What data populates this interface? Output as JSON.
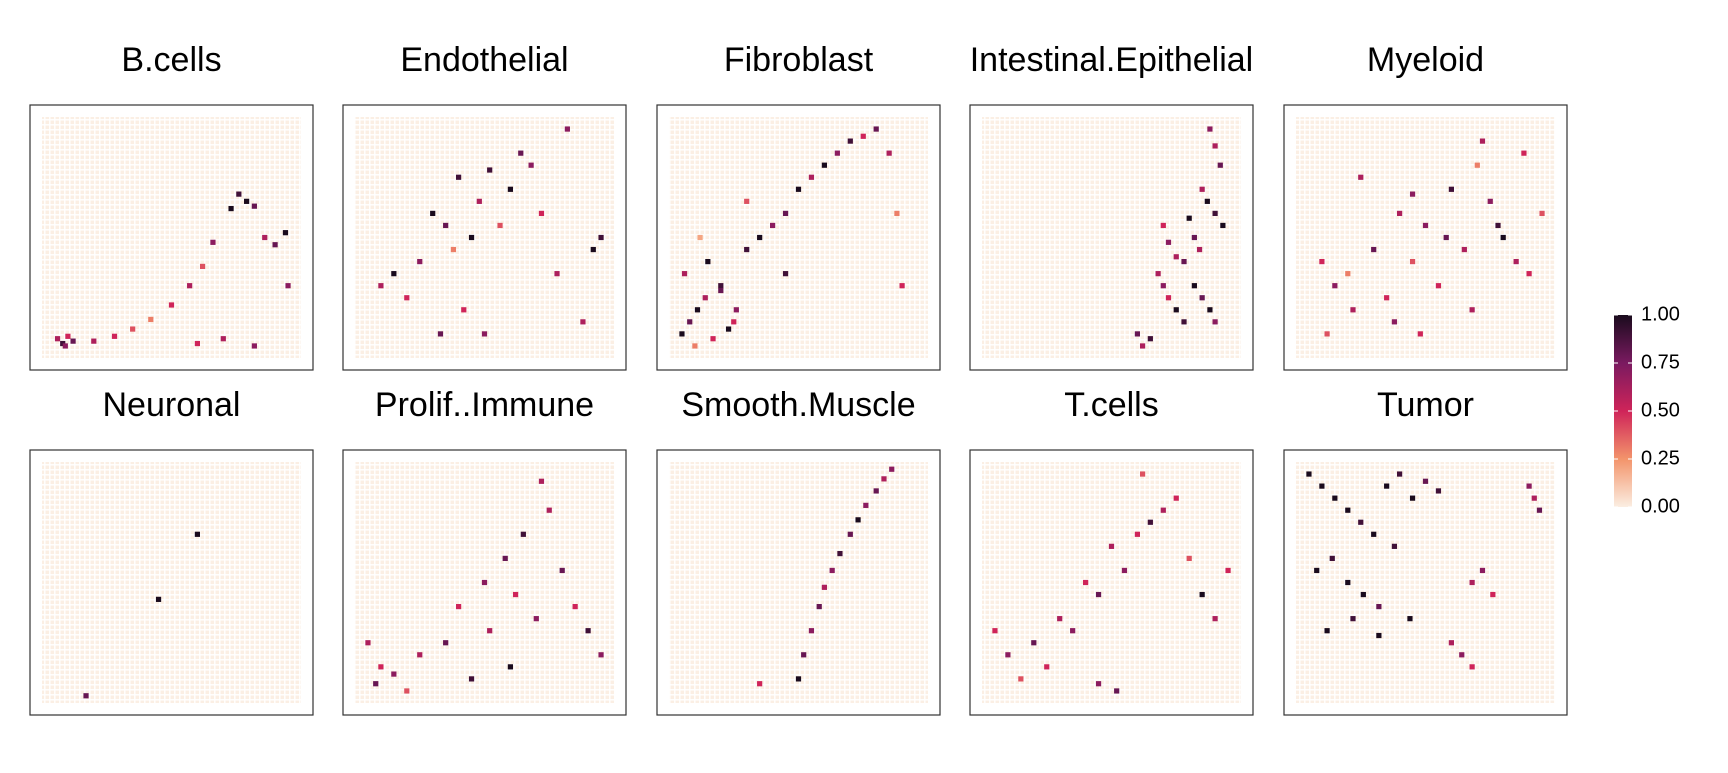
{
  "chart_data": [
    {
      "type": "scatter",
      "title": "B.cells",
      "xlim": [
        0,
        100
      ],
      "ylim": [
        0,
        100
      ],
      "x": [
        6,
        8,
        10,
        12,
        9,
        20,
        28,
        35,
        42,
        50,
        57,
        62,
        66,
        73,
        76,
        79,
        82,
        86,
        90,
        94,
        95,
        60,
        70,
        82
      ],
      "y": [
        8,
        6,
        9,
        7,
        5,
        7,
        9,
        12,
        16,
        22,
        30,
        38,
        48,
        62,
        68,
        65,
        63,
        50,
        47,
        52,
        30,
        6,
        8,
        5
      ],
      "values": [
        0.6,
        0.9,
        0.5,
        0.8,
        0.7,
        0.6,
        0.5,
        0.4,
        0.3,
        0.5,
        0.6,
        0.4,
        0.7,
        1,
        0.9,
        1,
        0.8,
        0.6,
        0.8,
        1,
        0.7,
        0.5,
        0.6,
        0.7
      ]
    },
    {
      "type": "scatter",
      "title": "Endothelial",
      "xlim": [
        0,
        100
      ],
      "ylim": [
        0,
        100
      ],
      "x": [
        10,
        15,
        20,
        25,
        30,
        35,
        38,
        40,
        42,
        45,
        48,
        52,
        56,
        60,
        64,
        68,
        72,
        78,
        82,
        88,
        92,
        95,
        33,
        50
      ],
      "y": [
        30,
        35,
        25,
        40,
        60,
        55,
        45,
        75,
        20,
        50,
        65,
        78,
        55,
        70,
        85,
        80,
        60,
        35,
        95,
        15,
        45,
        50,
        10,
        10
      ],
      "values": [
        0.6,
        1,
        0.5,
        0.7,
        1,
        0.8,
        0.3,
        0.9,
        0.5,
        1,
        0.6,
        0.9,
        0.4,
        1,
        0.8,
        0.7,
        0.5,
        0.6,
        0.7,
        0.6,
        1,
        0.9,
        0.8,
        0.7
      ]
    },
    {
      "type": "scatter",
      "title": "Fibroblast",
      "xlim": [
        0,
        100
      ],
      "ylim": [
        0,
        100
      ],
      "x": [
        5,
        8,
        11,
        14,
        17,
        20,
        23,
        26,
        6,
        10,
        15,
        20,
        25,
        30,
        35,
        40,
        45,
        50,
        55,
        60,
        65,
        70,
        75,
        80,
        85,
        88,
        30,
        45,
        90,
        12
      ],
      "y": [
        10,
        15,
        20,
        25,
        8,
        30,
        12,
        20,
        35,
        5,
        40,
        28,
        15,
        45,
        50,
        55,
        60,
        70,
        75,
        80,
        85,
        90,
        92,
        95,
        85,
        60,
        65,
        35,
        30,
        50
      ],
      "values": [
        1,
        0.8,
        1,
        0.6,
        0.5,
        0.9,
        1,
        0.7,
        0.6,
        0.3,
        1,
        0.8,
        0.5,
        0.9,
        1,
        0.7,
        0.8,
        1,
        0.6,
        1,
        0.7,
        0.9,
        0.5,
        0.8,
        0.6,
        0.3,
        0.4,
        0.9,
        0.5,
        0.2
      ]
    },
    {
      "type": "scatter",
      "title": "Intestinal.Epithelial",
      "xlim": [
        0,
        100
      ],
      "ylim": [
        0,
        100
      ],
      "x": [
        88,
        90,
        92,
        85,
        87,
        90,
        93,
        80,
        82,
        84,
        70,
        72,
        75,
        78,
        68,
        70,
        72,
        75,
        78,
        82,
        85,
        88,
        90,
        60,
        62,
        65
      ],
      "y": [
        95,
        88,
        80,
        70,
        65,
        60,
        55,
        58,
        50,
        45,
        55,
        48,
        42,
        40,
        35,
        30,
        25,
        20,
        15,
        30,
        25,
        20,
        15,
        10,
        5,
        8
      ],
      "values": [
        0.7,
        0.6,
        0.8,
        0.6,
        1,
        0.9,
        1,
        1,
        0.8,
        0.6,
        0.5,
        0.7,
        0.6,
        0.8,
        0.6,
        0.7,
        0.5,
        1,
        0.9,
        1,
        0.8,
        1,
        0.7,
        0.8,
        0.6,
        0.9
      ]
    },
    {
      "type": "scatter",
      "title": "Myeloid",
      "xlim": [
        0,
        100
      ],
      "ylim": [
        0,
        100
      ],
      "x": [
        10,
        15,
        20,
        22,
        30,
        35,
        40,
        45,
        50,
        55,
        60,
        65,
        70,
        75,
        80,
        85,
        90,
        95,
        25,
        38,
        48,
        58,
        68,
        78,
        88,
        12,
        45,
        72
      ],
      "y": [
        40,
        30,
        35,
        20,
        45,
        25,
        60,
        40,
        55,
        30,
        70,
        45,
        80,
        65,
        50,
        40,
        35,
        60,
        75,
        15,
        10,
        50,
        20,
        55,
        85,
        10,
        68,
        90
      ],
      "values": [
        0.5,
        0.7,
        0.3,
        0.6,
        0.8,
        0.5,
        0.6,
        0.4,
        0.7,
        0.5,
        0.9,
        0.6,
        0.3,
        0.7,
        1,
        0.6,
        0.5,
        0.4,
        0.6,
        0.7,
        0.5,
        0.8,
        0.6,
        0.9,
        0.5,
        0.4,
        0.7,
        0.6
      ]
    },
    {
      "type": "scatter",
      "title": "Neuronal",
      "xlim": [
        0,
        100
      ],
      "ylim": [
        0,
        100
      ],
      "x": [
        60,
        45,
        17
      ],
      "y": [
        70,
        43,
        3
      ],
      "values": [
        1,
        1,
        0.8
      ]
    },
    {
      "type": "scatter",
      "title": "Prolif..Immune",
      "xlim": [
        0,
        100
      ],
      "ylim": [
        0,
        100
      ],
      "x": [
        5,
        8,
        10,
        15,
        20,
        25,
        35,
        40,
        45,
        50,
        52,
        58,
        62,
        65,
        70,
        75,
        80,
        85,
        90,
        95,
        72,
        60
      ],
      "y": [
        25,
        8,
        15,
        12,
        5,
        20,
        25,
        40,
        10,
        50,
        30,
        60,
        45,
        70,
        35,
        80,
        55,
        40,
        30,
        20,
        92,
        15
      ],
      "values": [
        0.6,
        0.8,
        0.5,
        0.7,
        0.4,
        0.6,
        0.8,
        0.5,
        0.9,
        0.7,
        0.6,
        0.8,
        0.5,
        0.9,
        0.7,
        0.6,
        0.8,
        0.5,
        0.9,
        0.7,
        0.6,
        1
      ]
    },
    {
      "type": "scatter",
      "title": "Smooth.Muscle",
      "xlim": [
        0,
        100
      ],
      "ylim": [
        0,
        100
      ],
      "x": [
        50,
        52,
        55,
        58,
        60,
        63,
        66,
        70,
        73,
        76,
        80,
        83,
        86,
        35
      ],
      "y": [
        10,
        20,
        30,
        40,
        48,
        55,
        62,
        70,
        76,
        82,
        88,
        93,
        97,
        8
      ],
      "values": [
        1,
        0.8,
        0.7,
        0.8,
        0.6,
        0.7,
        0.9,
        0.8,
        1,
        0.7,
        0.8,
        0.6,
        0.7,
        0.5
      ]
    },
    {
      "type": "scatter",
      "title": "T.cells",
      "xlim": [
        0,
        100
      ],
      "ylim": [
        0,
        100
      ],
      "x": [
        5,
        10,
        15,
        20,
        25,
        30,
        35,
        40,
        45,
        50,
        55,
        60,
        65,
        70,
        75,
        80,
        85,
        90,
        95,
        45,
        52,
        62
      ],
      "y": [
        30,
        20,
        10,
        25,
        15,
        35,
        30,
        50,
        45,
        65,
        55,
        70,
        75,
        80,
        85,
        60,
        45,
        35,
        55,
        8,
        5,
        95
      ],
      "values": [
        0.5,
        0.7,
        0.4,
        0.8,
        0.5,
        0.6,
        0.7,
        0.5,
        0.8,
        0.6,
        0.7,
        0.5,
        0.9,
        0.6,
        0.5,
        0.4,
        1,
        0.6,
        0.5,
        0.7,
        0.8,
        0.4
      ]
    },
    {
      "type": "scatter",
      "title": "Tumor",
      "xlim": [
        0,
        100
      ],
      "ylim": [
        0,
        100
      ],
      "x": [
        5,
        10,
        15,
        20,
        25,
        30,
        35,
        40,
        45,
        50,
        55,
        8,
        14,
        20,
        26,
        32,
        38,
        44,
        12,
        22,
        32,
        90,
        92,
        94,
        68,
        72,
        76,
        60,
        64,
        68
      ],
      "y": [
        95,
        90,
        85,
        80,
        75,
        70,
        90,
        95,
        85,
        92,
        88,
        55,
        60,
        50,
        45,
        40,
        65,
        35,
        30,
        35,
        28,
        90,
        85,
        80,
        50,
        55,
        45,
        25,
        20,
        15
      ],
      "values": [
        1,
        1,
        1,
        1,
        0.9,
        1,
        1,
        0.9,
        1,
        0.8,
        0.9,
        1,
        0.9,
        1,
        1,
        0.8,
        0.9,
        1,
        1,
        0.9,
        1,
        0.7,
        0.6,
        0.8,
        0.6,
        0.7,
        0.5,
        0.6,
        0.7,
        0.5
      ]
    }
  ],
  "colorbar": {
    "lim": [
      0,
      1
    ],
    "colors": [
      "#fbeee2",
      "#f3946b",
      "#cf2459",
      "#7a1a60",
      "#1a0b1d"
    ],
    "ticks": [
      {
        "value": 0,
        "label": "0.00"
      },
      {
        "value": 0.25,
        "label": "0.25"
      },
      {
        "value": 0.5,
        "label": "0.50"
      },
      {
        "value": 0.75,
        "label": "0.75"
      },
      {
        "value": 1,
        "label": "1.00"
      }
    ]
  }
}
